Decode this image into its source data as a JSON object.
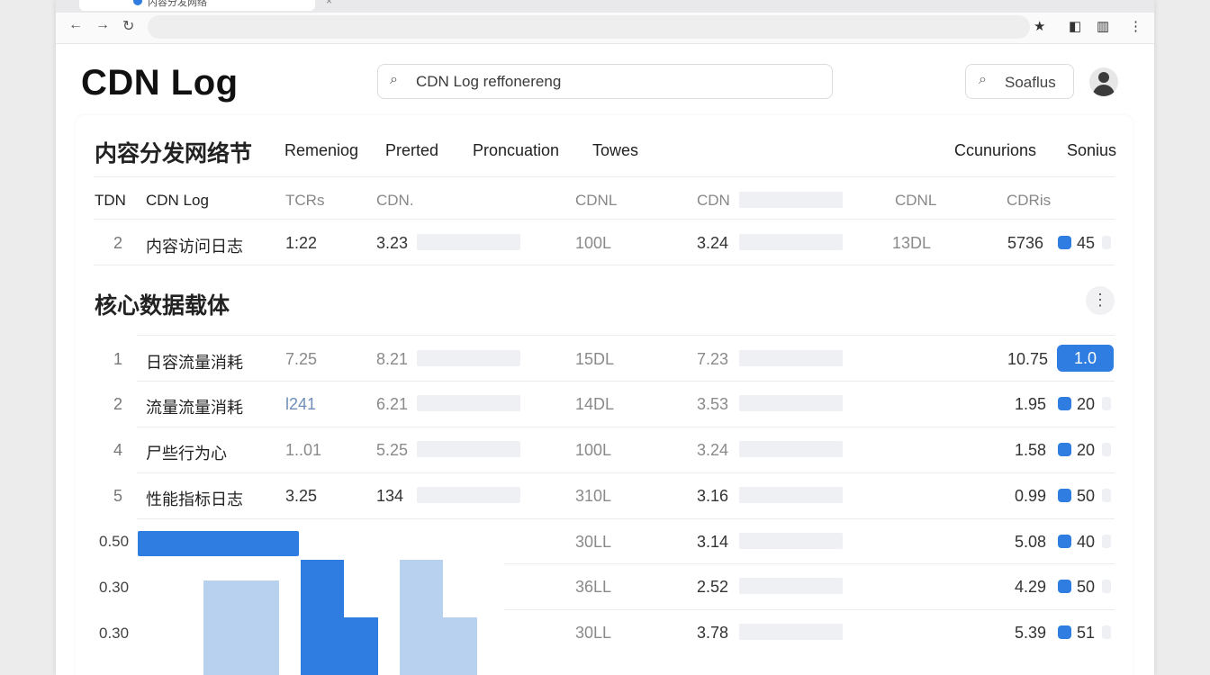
{
  "browser": {
    "tab_title": "内容分发网络",
    "tab_close": "×",
    "icons": [
      "back-arrow-icon",
      "forward-arrow-icon",
      "reload-icon",
      "star-icon",
      "reader-icon",
      "sidebar-icon",
      "menu-icon"
    ]
  },
  "header": {
    "title": "CDN Log",
    "search_value": "CDN Log reffonereng",
    "secondary_search": "Soaflus"
  },
  "section1": {
    "title": "内容分发网络节",
    "menu": [
      "Remeniog",
      "Prerted",
      "Proncuation",
      "Towes",
      "Ccunurions",
      "Sonius"
    ],
    "columns": [
      "TDN",
      "CDN Log",
      "TCRs",
      "CDN.",
      "CDNL",
      "CDN",
      "CDNL",
      "CDRis"
    ],
    "row": {
      "rank": "2",
      "label": "内容访问日志",
      "c1": "1:22",
      "c2": "3.23",
      "c3": "100L",
      "c4": "3.24",
      "c5": "13DL",
      "c6": "5736",
      "c7": "45"
    }
  },
  "section2": {
    "title": "核心数据载体",
    "more_icon": "⋮",
    "rows": [
      {
        "rank": "1",
        "label": "日容流量消耗",
        "c1": "7.25",
        "c2": "8.21",
        "c3": "15DL",
        "c4": "7.23",
        "c6": "10.75",
        "c7": "1.0"
      },
      {
        "rank": "2",
        "label": "流量流量消耗",
        "c1": "l241",
        "c2": "6.21",
        "c3": "14DL",
        "c4": "3.53",
        "c6": "1.95",
        "c7": "20"
      },
      {
        "rank": "4",
        "label": "尸些行为心",
        "c1": "1..01",
        "c2": "5.25",
        "c3": "100L",
        "c4": "3.24",
        "c6": "1.58",
        "c7": "20"
      },
      {
        "rank": "5",
        "label": "性能指标日志",
        "c1": "3.25",
        "c2": "134",
        "c3": "310L",
        "c4": "3.16",
        "c6": "0.99",
        "c7": "50"
      }
    ],
    "lower_rows": [
      {
        "c3": "30LL",
        "c4": "3.14",
        "c6": "5.08",
        "c7": "40"
      },
      {
        "c3": "36LL",
        "c4": "2.52",
        "c6": "4.29",
        "c7": "50"
      },
      {
        "c3": "30LL",
        "c4": "3.78",
        "c6": "5.39",
        "c7": "51"
      }
    ]
  },
  "chart_data": {
    "type": "bar",
    "y_ticks": [
      "0.50",
      "0.30",
      "0.30"
    ],
    "colors": {
      "primary": "#2f7de0",
      "light": "#b7d1ef"
    }
  }
}
